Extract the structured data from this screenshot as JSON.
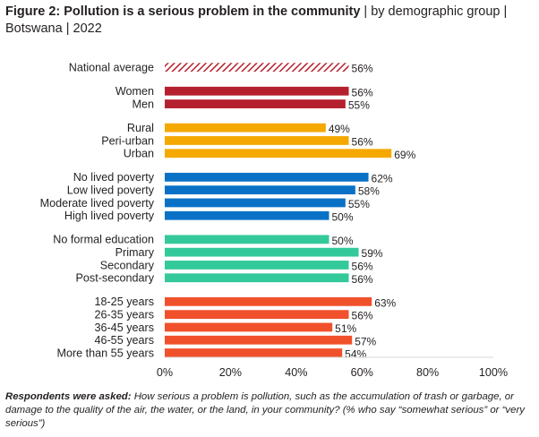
{
  "title_bold": "Figure 2: Pollution is a serious problem in the community",
  "title_rest": " | by demographic group | Botswana | 2022",
  "note_lead": "Respondents were asked:",
  "note_text": " How serious a problem is pollution, such as the accumulation of trash or garbage, or damage to the quality of the air, the water, or the land, in your community? (% who say “somewhat serious” or “very serious”)",
  "colors": {
    "national": "#b5202e",
    "gender": "#b5202e",
    "location": "#f5a800",
    "poverty": "#0a72c6",
    "education": "#33c99b",
    "age": "#f0512b",
    "text": "#231f20",
    "axis": "#d9d9d9"
  },
  "chart_data": {
    "type": "bar",
    "orientation": "horizontal",
    "xlim": [
      0,
      100
    ],
    "x_ticks": [
      "0%",
      "20%",
      "40%",
      "60%",
      "80%",
      "100%"
    ],
    "grid": false,
    "legend": "none",
    "groups": [
      {
        "key": "national",
        "hatched": true,
        "items": [
          {
            "label": "National average",
            "value": 56,
            "value_label": "56%"
          }
        ]
      },
      {
        "key": "gender",
        "items": [
          {
            "label": "Women",
            "value": 56,
            "value_label": "56%"
          },
          {
            "label": "Men",
            "value": 55,
            "value_label": "55%"
          }
        ]
      },
      {
        "key": "location",
        "items": [
          {
            "label": "Rural",
            "value": 49,
            "value_label": "49%"
          },
          {
            "label": "Peri-urban",
            "value": 56,
            "value_label": "56%"
          },
          {
            "label": "Urban",
            "value": 69,
            "value_label": "69%"
          }
        ]
      },
      {
        "key": "poverty",
        "items": [
          {
            "label": "No lived poverty",
            "value": 62,
            "value_label": "62%"
          },
          {
            "label": "Low lived poverty",
            "value": 58,
            "value_label": "58%"
          },
          {
            "label": "Moderate lived poverty",
            "value": 55,
            "value_label": "55%"
          },
          {
            "label": "High lived poverty",
            "value": 50,
            "value_label": "50%"
          }
        ]
      },
      {
        "key": "education",
        "items": [
          {
            "label": "No formal education",
            "value": 50,
            "value_label": "50%"
          },
          {
            "label": "Primary",
            "value": 59,
            "value_label": "59%"
          },
          {
            "label": "Secondary",
            "value": 56,
            "value_label": "56%"
          },
          {
            "label": "Post-secondary",
            "value": 56,
            "value_label": "56%"
          }
        ]
      },
      {
        "key": "age",
        "items": [
          {
            "label": "18-25 years",
            "value": 63,
            "value_label": "63%"
          },
          {
            "label": "26-35 years",
            "value": 56,
            "value_label": "56%"
          },
          {
            "label": "36-45 years",
            "value": 51,
            "value_label": "51%"
          },
          {
            "label": "46-55 years",
            "value": 57,
            "value_label": "57%"
          },
          {
            "label": "More than 55 years",
            "value": 54,
            "value_label": "54%"
          }
        ]
      }
    ]
  }
}
